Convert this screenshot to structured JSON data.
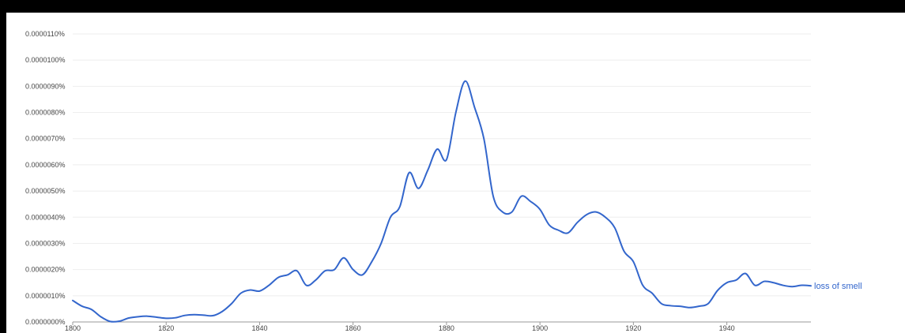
{
  "chart_data": {
    "type": "line",
    "title": "",
    "xlabel": "",
    "ylabel": "",
    "xlim": [
      1800,
      1958
    ],
    "ylim": [
      0,
      1.1e-06
    ],
    "grid": true,
    "y_ticks": [
      {
        "value": 0.0,
        "label": "0.0000000%"
      },
      {
        "value": 1e-07,
        "label": "0.0000010%"
      },
      {
        "value": 2e-07,
        "label": "0.0000020%"
      },
      {
        "value": 3e-07,
        "label": "0.0000030%"
      },
      {
        "value": 4e-07,
        "label": "0.0000040%"
      },
      {
        "value": 5e-07,
        "label": "0.0000050%"
      },
      {
        "value": 6e-07,
        "label": "0.0000060%"
      },
      {
        "value": 7e-07,
        "label": "0.0000070%"
      },
      {
        "value": 8e-07,
        "label": "0.0000080%"
      },
      {
        "value": 9e-07,
        "label": "0.0000090%"
      },
      {
        "value": 1e-06,
        "label": "0.0000100%"
      },
      {
        "value": 1.1e-06,
        "label": "0.0000110%"
      }
    ],
    "x_ticks": [
      {
        "value": 1800,
        "label": "1800"
      },
      {
        "value": 1820,
        "label": "1820"
      },
      {
        "value": 1840,
        "label": "1840"
      },
      {
        "value": 1860,
        "label": "1860"
      },
      {
        "value": 1880,
        "label": "1880"
      },
      {
        "value": 1900,
        "label": "1900"
      },
      {
        "value": 1920,
        "label": "1920"
      },
      {
        "value": 1940,
        "label": "1940"
      }
    ],
    "series": [
      {
        "name": "loss of smell",
        "color": "#3366cc",
        "x": [
          1800,
          1802,
          1804,
          1806,
          1808,
          1810,
          1812,
          1814,
          1816,
          1818,
          1820,
          1822,
          1824,
          1826,
          1828,
          1830,
          1832,
          1834,
          1836,
          1838,
          1840,
          1842,
          1844,
          1846,
          1848,
          1850,
          1852,
          1854,
          1856,
          1858,
          1860,
          1862,
          1864,
          1866,
          1868,
          1870,
          1872,
          1874,
          1876,
          1878,
          1880,
          1882,
          1884,
          1886,
          1888,
          1890,
          1892,
          1894,
          1896,
          1898,
          1900,
          1902,
          1904,
          1906,
          1908,
          1910,
          1912,
          1914,
          1916,
          1918,
          1920,
          1922,
          1924,
          1926,
          1928,
          1930,
          1932,
          1934,
          1936,
          1938,
          1940,
          1942,
          1944,
          1946,
          1948,
          1950,
          1952,
          1954,
          1956,
          1958
        ],
        "y": [
          8.2e-08,
          6e-08,
          4.8e-08,
          2e-08,
          2e-09,
          3e-09,
          1.5e-08,
          2e-08,
          2.2e-08,
          1.8e-08,
          1.4e-08,
          1.6e-08,
          2.5e-08,
          2.8e-08,
          2.6e-08,
          2.4e-08,
          4e-08,
          7e-08,
          1.1e-07,
          1.22e-07,
          1.18e-07,
          1.4e-07,
          1.7e-07,
          1.8e-07,
          1.95e-07,
          1.4e-07,
          1.6e-07,
          1.95e-07,
          2e-07,
          2.45e-07,
          2e-07,
          1.8e-07,
          2.3e-07,
          3e-07,
          4e-07,
          4.4e-07,
          5.7e-07,
          5.1e-07,
          5.8e-07,
          6.6e-07,
          6.2e-07,
          8e-07,
          9.2e-07,
          8.2e-07,
          7e-07,
          4.8e-07,
          4.2e-07,
          4.2e-07,
          4.8e-07,
          4.6e-07,
          4.3e-07,
          3.7e-07,
          3.5e-07,
          3.4e-07,
          3.8e-07,
          4.1e-07,
          4.2e-07,
          4e-07,
          3.6e-07,
          2.7e-07,
          2.3e-07,
          1.4e-07,
          1.1e-07,
          7e-08,
          6.2e-08,
          6e-08,
          5.5e-08,
          6e-08,
          7e-08,
          1.2e-07,
          1.5e-07,
          1.6e-07,
          1.85e-07,
          1.4e-07,
          1.55e-07,
          1.5e-07,
          1.4e-07,
          1.35e-07,
          1.4e-07,
          1.38e-07
        ]
      }
    ]
  }
}
